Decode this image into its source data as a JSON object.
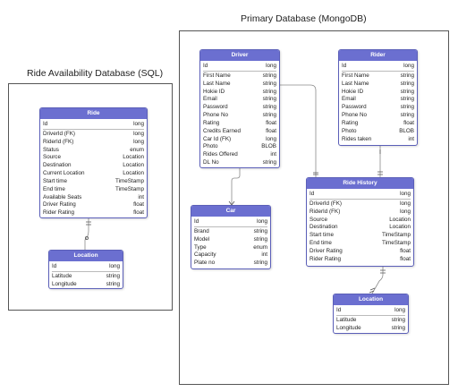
{
  "sql_db": {
    "title": "Ride Availability Database (SQL)"
  },
  "mongo_db": {
    "title": "Primary Database (MongoDB)"
  },
  "entities": {
    "ride": {
      "name": "Ride",
      "fields": [
        {
          "name": "Id",
          "type": "long"
        },
        {
          "name": "DriverId (FK)",
          "type": "long"
        },
        {
          "name": "RiderId (FK)",
          "type": "long"
        },
        {
          "name": "Status",
          "type": "enum"
        },
        {
          "name": "Source",
          "type": "Location"
        },
        {
          "name": "Destination",
          "type": "Location"
        },
        {
          "name": "Current Location",
          "type": "Location"
        },
        {
          "name": "Start time",
          "type": "TimeStamp"
        },
        {
          "name": "End time",
          "type": "TimeStamp"
        },
        {
          "name": "Available Seats",
          "type": "int"
        },
        {
          "name": "Driver Rating",
          "type": "float"
        },
        {
          "name": "Rider Rating",
          "type": "float"
        }
      ]
    },
    "sql_location": {
      "name": "Location",
      "fields": [
        {
          "name": "Id",
          "type": "long"
        },
        {
          "name": "Latitude",
          "type": "string"
        },
        {
          "name": "Longitude",
          "type": "string"
        }
      ]
    },
    "driver": {
      "name": "Driver",
      "fields": [
        {
          "name": "Id",
          "type": "long"
        },
        {
          "name": "First Name",
          "type": "string"
        },
        {
          "name": "Last Name",
          "type": "string"
        },
        {
          "name": "Hokie ID",
          "type": "string"
        },
        {
          "name": "Email",
          "type": "string"
        },
        {
          "name": "Password",
          "type": "string"
        },
        {
          "name": "Phone No",
          "type": "string"
        },
        {
          "name": "Rating",
          "type": "float"
        },
        {
          "name": "Credits Earned",
          "type": "float"
        },
        {
          "name": "Car Id (FK)",
          "type": "long"
        },
        {
          "name": "Photo",
          "type": "BLOB"
        },
        {
          "name": "Rides Offered",
          "type": "int"
        },
        {
          "name": "DL No",
          "type": "string"
        }
      ]
    },
    "rider": {
      "name": "Rider",
      "fields": [
        {
          "name": "Id",
          "type": "long"
        },
        {
          "name": "First Name",
          "type": "string"
        },
        {
          "name": "Last Name",
          "type": "string"
        },
        {
          "name": "Hokie ID",
          "type": "string"
        },
        {
          "name": "Email",
          "type": "string"
        },
        {
          "name": "Password",
          "type": "string"
        },
        {
          "name": "Phone No",
          "type": "string"
        },
        {
          "name": "Rating",
          "type": "float"
        },
        {
          "name": "Photo",
          "type": "BLOB"
        },
        {
          "name": "Rides taken",
          "type": "int"
        }
      ]
    },
    "car": {
      "name": "Car",
      "fields": [
        {
          "name": "Id",
          "type": "long"
        },
        {
          "name": "Brand",
          "type": "string"
        },
        {
          "name": "Model",
          "type": "string"
        },
        {
          "name": "Type",
          "type": "enum"
        },
        {
          "name": "Capacity",
          "type": "int"
        },
        {
          "name": "Plate no",
          "type": "string"
        }
      ]
    },
    "ride_history": {
      "name": "Ride History",
      "fields": [
        {
          "name": "Id",
          "type": "long"
        },
        {
          "name": "DriverId (FK)",
          "type": "long"
        },
        {
          "name": "RiderId (FK)",
          "type": "long"
        },
        {
          "name": "Source",
          "type": "Location"
        },
        {
          "name": "Destination",
          "type": "Location"
        },
        {
          "name": "Start time",
          "type": "TimeStamp"
        },
        {
          "name": "End time",
          "type": "TimeStamp"
        },
        {
          "name": "Driver Rating",
          "type": "float"
        },
        {
          "name": "Rider Rating",
          "type": "float"
        }
      ]
    },
    "mongo_location": {
      "name": "Location",
      "fields": [
        {
          "name": "Id",
          "type": "long"
        },
        {
          "name": "Latitude",
          "type": "string"
        },
        {
          "name": "Longitude",
          "type": "string"
        }
      ]
    }
  }
}
